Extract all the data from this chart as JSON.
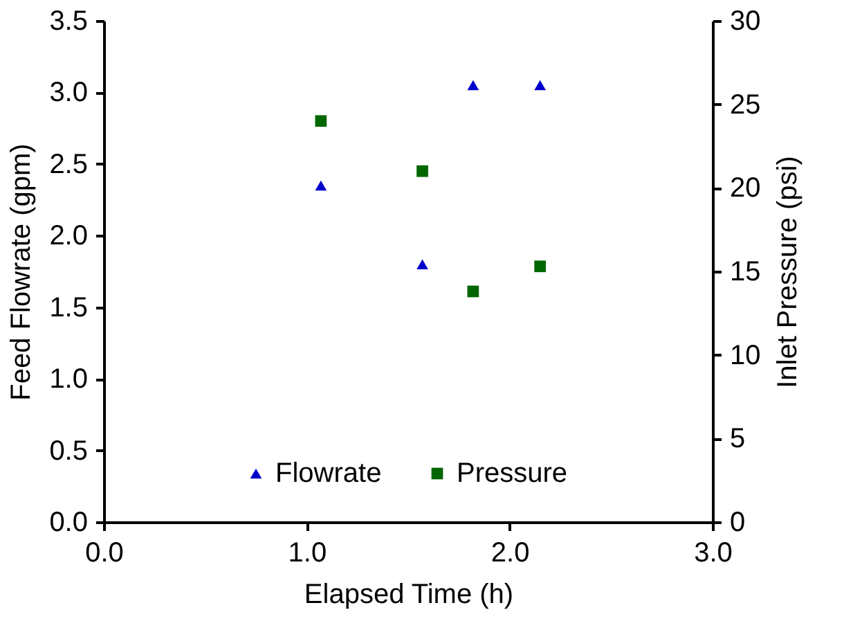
{
  "chart_data": {
    "type": "scatter",
    "xlabel": "Elapsed Time (h)",
    "ylabel": "Feed Flowrate (gpm)",
    "y2label": "Inlet Pressure (psi)",
    "x": [
      1.07,
      1.57,
      1.82,
      2.15
    ],
    "series": [
      {
        "name": "Flowrate",
        "color": "#0000cc",
        "marker": "triangle",
        "values": [
          2.35,
          1.8,
          3.05,
          3.05
        ]
      },
      {
        "name": "Pressure",
        "color": "#006600",
        "marker": "square",
        "axis": "y2",
        "values": [
          24.0,
          21.0,
          13.8,
          15.3
        ]
      }
    ],
    "xlim": [
      0,
      3
    ],
    "xticks": [
      {
        "value": 0,
        "label": "0.0"
      },
      {
        "value": 1,
        "label": "1.0"
      },
      {
        "value": 2,
        "label": "2.0"
      },
      {
        "value": 3,
        "label": "3.0"
      }
    ],
    "ylim": [
      0,
      3.5
    ],
    "yticks": [
      {
        "value": 0,
        "label": "0.0"
      },
      {
        "value": 0.5,
        "label": "0.5"
      },
      {
        "value": 1,
        "label": "1.0"
      },
      {
        "value": 1.5,
        "label": "1.5"
      },
      {
        "value": 2,
        "label": "2.0"
      },
      {
        "value": 2.5,
        "label": "2.5"
      },
      {
        "value": 3,
        "label": "3.0"
      },
      {
        "value": 3.5,
        "label": "3.5"
      }
    ],
    "y2lim": [
      0,
      30
    ],
    "y2ticks": [
      0,
      5,
      10,
      15,
      20,
      25,
      30
    ],
    "grid": false,
    "legend": "bottom"
  }
}
